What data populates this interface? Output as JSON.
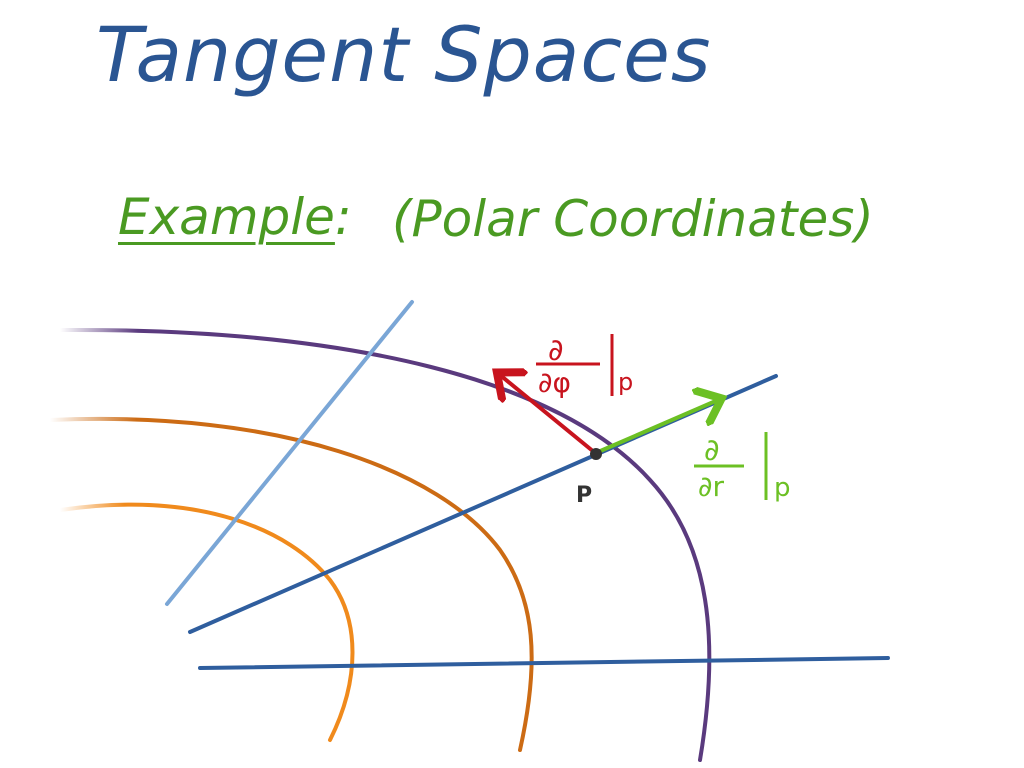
{
  "title": "Tangent Spaces",
  "example": {
    "label": "Example",
    "colon": ":",
    "description": "(Polar Coordinates)"
  },
  "diagram": {
    "point_label": "P",
    "phi_vector_label": {
      "top": "∂",
      "bottom": "∂φ",
      "subscript": "p"
    },
    "r_vector_label": {
      "top": "∂",
      "bottom": "∂r",
      "subscript": "p"
    }
  },
  "colors": {
    "title": "#2a5592",
    "example": "#4a9a22",
    "axis": "#2f5e9e",
    "grid_line": "#7aa6d6",
    "circle_outer": "#5a3a7e",
    "circle_middle": "#cc6b14",
    "circle_inner": "#f08a1c",
    "vector_phi": "#c8141e",
    "vector_r": "#6cc024",
    "point": "#333333"
  }
}
